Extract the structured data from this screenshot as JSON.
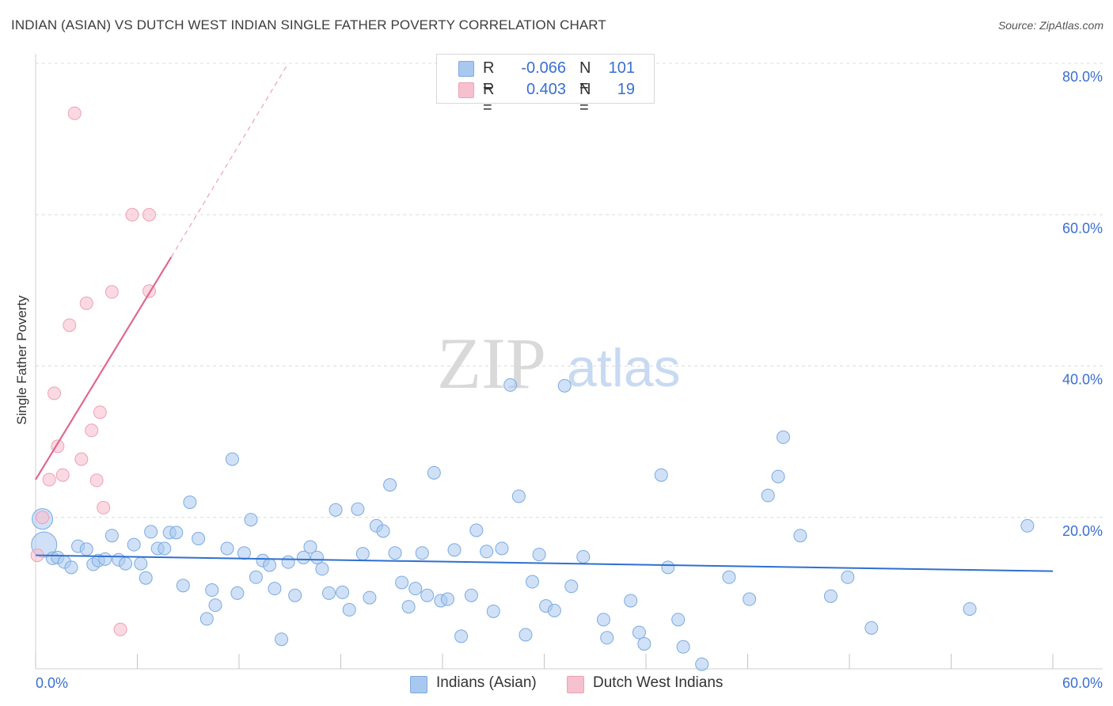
{
  "title": "INDIAN (ASIAN) VS DUTCH WEST INDIAN SINGLE FATHER POVERTY CORRELATION CHART",
  "source": "Source: ZipAtlas.com",
  "watermark": {
    "zip": "ZIP",
    "atlas": "atlas"
  },
  "legend_top": [
    {
      "r_label": "R =",
      "r_value": "-0.066",
      "n_label": "N =",
      "n_value": "101",
      "color": "#a9c8f0"
    },
    {
      "r_label": "R =",
      "r_value": "0.403",
      "n_label": "N =",
      "n_value": "19",
      "color": "#f6c0cf"
    }
  ],
  "legend_bottom": [
    {
      "label": "Indians (Asian)",
      "color": "#a9c8f0"
    },
    {
      "label": "Dutch West Indians",
      "color": "#f6c0cf"
    }
  ],
  "chart_data": {
    "type": "scatter",
    "xlabel": "",
    "ylabel": "Single Father Poverty",
    "xlim": [
      0,
      60
    ],
    "ylim": [
      0,
      80
    ],
    "x_tick_labels": [
      "0.0%",
      "60.0%"
    ],
    "y_tick_labels": [
      "20.0%",
      "40.0%",
      "60.0%",
      "80.0%"
    ],
    "y_gridlines": [
      20,
      40,
      60,
      80
    ],
    "grid": true,
    "legend_placement": "top-center",
    "series": [
      {
        "name": "Indians (Asian)",
        "color": "#a9c8f0",
        "stroke": "#7aaae0",
        "trend_color": "#2f6fd0",
        "trend": {
          "x0": 0,
          "y0": 15.0,
          "x1": 60,
          "y1": 12.9
        },
        "points": [
          [
            0.4,
            19.8
          ],
          [
            0.5,
            16.4
          ],
          [
            1.0,
            14.6
          ],
          [
            1.3,
            14.7
          ],
          [
            1.7,
            14.1
          ],
          [
            2.1,
            13.4
          ],
          [
            2.5,
            16.2
          ],
          [
            3.0,
            15.8
          ],
          [
            3.4,
            13.8
          ],
          [
            3.7,
            14.3
          ],
          [
            4.1,
            14.5
          ],
          [
            4.5,
            17.6
          ],
          [
            4.9,
            14.4
          ],
          [
            5.3,
            13.9
          ],
          [
            5.8,
            16.4
          ],
          [
            6.2,
            13.9
          ],
          [
            6.5,
            12.0
          ],
          [
            6.8,
            18.1
          ],
          [
            7.2,
            15.9
          ],
          [
            7.6,
            15.9
          ],
          [
            7.9,
            18.0
          ],
          [
            8.3,
            18.0
          ],
          [
            8.7,
            11.0
          ],
          [
            9.1,
            22.0
          ],
          [
            9.6,
            17.2
          ],
          [
            10.1,
            6.6
          ],
          [
            10.4,
            10.4
          ],
          [
            10.6,
            8.4
          ],
          [
            11.3,
            15.9
          ],
          [
            11.6,
            27.7
          ],
          [
            11.9,
            10.0
          ],
          [
            12.3,
            15.3
          ],
          [
            12.7,
            19.7
          ],
          [
            13.0,
            12.1
          ],
          [
            13.4,
            14.3
          ],
          [
            13.8,
            13.7
          ],
          [
            14.1,
            10.6
          ],
          [
            14.5,
            3.9
          ],
          [
            14.9,
            14.1
          ],
          [
            15.3,
            9.7
          ],
          [
            15.8,
            14.7
          ],
          [
            16.2,
            16.1
          ],
          [
            16.6,
            14.7
          ],
          [
            16.9,
            13.2
          ],
          [
            17.3,
            10.0
          ],
          [
            17.7,
            21.0
          ],
          [
            18.1,
            10.1
          ],
          [
            18.5,
            7.8
          ],
          [
            19.0,
            21.1
          ],
          [
            19.3,
            15.2
          ],
          [
            19.7,
            9.4
          ],
          [
            20.1,
            18.9
          ],
          [
            20.5,
            18.2
          ],
          [
            20.9,
            24.3
          ],
          [
            21.2,
            15.3
          ],
          [
            21.6,
            11.4
          ],
          [
            22.0,
            8.2
          ],
          [
            22.4,
            10.6
          ],
          [
            22.8,
            15.3
          ],
          [
            23.1,
            9.7
          ],
          [
            23.5,
            25.9
          ],
          [
            23.9,
            9.0
          ],
          [
            24.3,
            9.2
          ],
          [
            24.7,
            15.7
          ],
          [
            25.1,
            4.3
          ],
          [
            25.7,
            9.7
          ],
          [
            26.0,
            18.3
          ],
          [
            26.6,
            15.5
          ],
          [
            27.0,
            7.6
          ],
          [
            27.5,
            15.9
          ],
          [
            28.0,
            37.5
          ],
          [
            28.5,
            22.8
          ],
          [
            28.9,
            4.5
          ],
          [
            29.3,
            11.5
          ],
          [
            29.7,
            15.1
          ],
          [
            30.1,
            8.3
          ],
          [
            30.6,
            7.7
          ],
          [
            31.2,
            37.4
          ],
          [
            31.6,
            10.9
          ],
          [
            32.3,
            14.8
          ],
          [
            33.5,
            6.5
          ],
          [
            33.7,
            4.1
          ],
          [
            35.1,
            9.0
          ],
          [
            35.6,
            4.8
          ],
          [
            35.9,
            3.3
          ],
          [
            36.9,
            25.6
          ],
          [
            37.3,
            13.4
          ],
          [
            37.9,
            6.5
          ],
          [
            38.2,
            2.9
          ],
          [
            39.3,
            0.6
          ],
          [
            40.9,
            12.1
          ],
          [
            42.1,
            9.2
          ],
          [
            43.2,
            22.9
          ],
          [
            43.8,
            25.4
          ],
          [
            44.1,
            30.6
          ],
          [
            45.1,
            17.6
          ],
          [
            46.9,
            9.6
          ],
          [
            47.9,
            12.1
          ],
          [
            49.3,
            5.4
          ],
          [
            55.1,
            7.9
          ],
          [
            58.5,
            18.9
          ]
        ]
      },
      {
        "name": "Dutch West Indians",
        "color": "#f6c0cf",
        "stroke": "#eea0b6",
        "trend_color": "#e0688e",
        "trend": {
          "x0": 0,
          "y0": 25.0,
          "x1": 8.0,
          "y1": 54.4,
          "dashed_to_x": 14.9,
          "dashed_to_y": 80
        },
        "points": [
          [
            0.1,
            15.0
          ],
          [
            0.4,
            20.0
          ],
          [
            0.8,
            25.0
          ],
          [
            1.1,
            36.4
          ],
          [
            1.3,
            29.4
          ],
          [
            1.6,
            25.6
          ],
          [
            2.0,
            45.4
          ],
          [
            2.3,
            73.4
          ],
          [
            2.7,
            27.7
          ],
          [
            3.0,
            48.3
          ],
          [
            3.3,
            31.5
          ],
          [
            3.6,
            24.9
          ],
          [
            3.8,
            33.9
          ],
          [
            4.0,
            21.3
          ],
          [
            4.5,
            49.8
          ],
          [
            5.0,
            5.2
          ],
          [
            5.7,
            60.0
          ],
          [
            6.7,
            60.0
          ],
          [
            6.7,
            49.9
          ]
        ]
      }
    ]
  }
}
